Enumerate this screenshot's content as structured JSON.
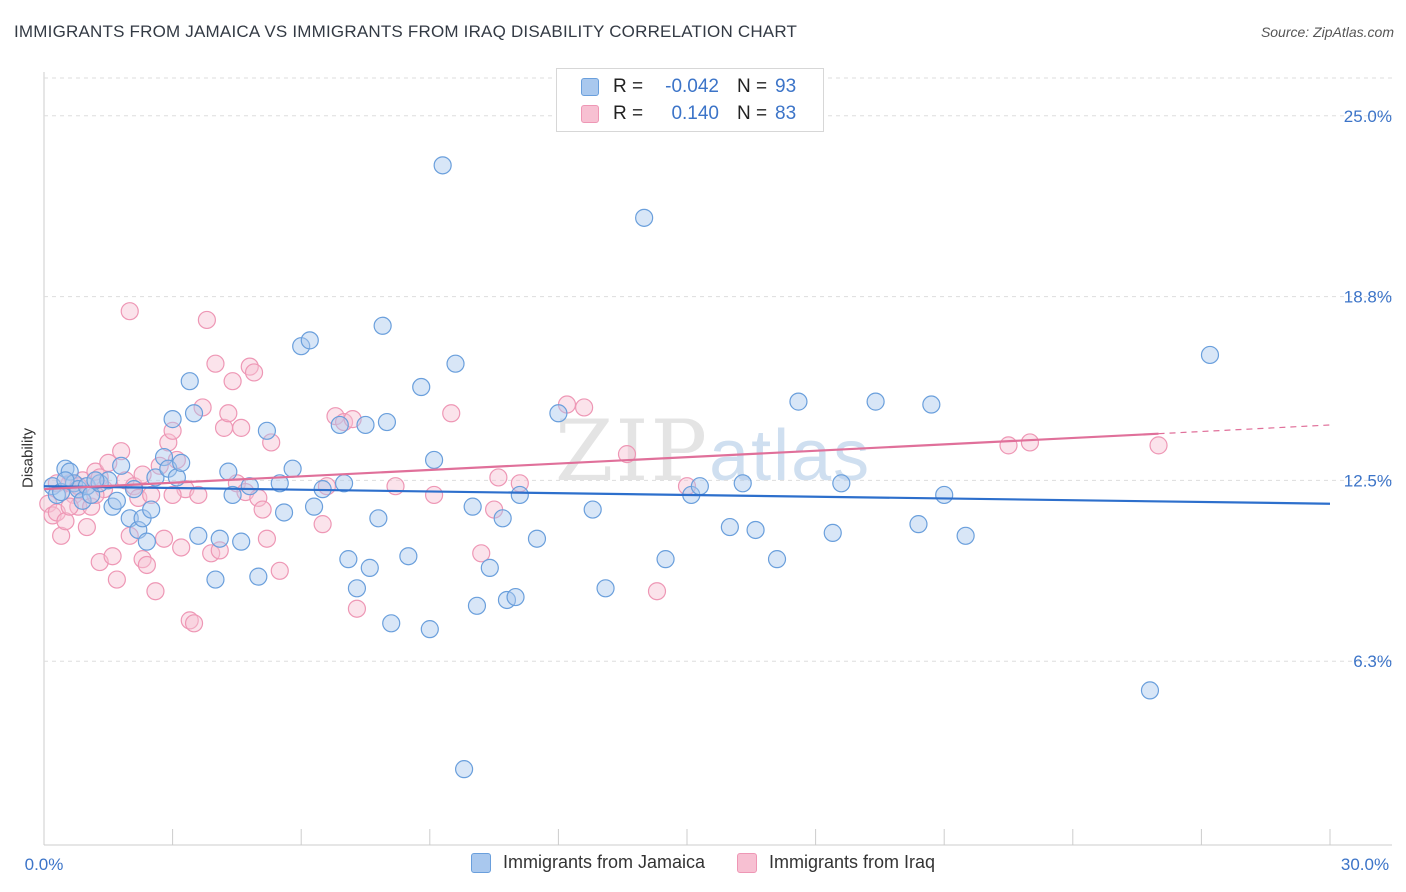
{
  "header": {
    "title": "IMMIGRANTS FROM JAMAICA VS IMMIGRANTS FROM IRAQ DISABILITY CORRELATION CHART",
    "source": "Source: ZipAtlas.com"
  },
  "watermark": {
    "part1": "ZIP",
    "part2": "atlas"
  },
  "legend": {
    "rows": [
      {
        "r_label": "R =",
        "r_value": "-0.042",
        "n_label": "N =",
        "n_value": "93",
        "color": "#7eaee8"
      },
      {
        "r_label": "R =",
        "r_value": "0.140",
        "n_label": "N =",
        "n_value": "83",
        "color": "#f4a6bf"
      }
    ]
  },
  "bottom_legend": {
    "series1": "Immigrants from Jamaica",
    "series2": "Immigrants from Iraq"
  },
  "colors": {
    "blue_fill": "#a9c8ee",
    "blue_stroke": "#6a9fdc",
    "blue_line": "#2d6fcc",
    "pink_fill": "#f7c0d2",
    "pink_stroke": "#ee97b5",
    "pink_line": "#e0709a",
    "tick_text": "#3c74c8",
    "grid": "#dddddd"
  },
  "chart_data": {
    "type": "scatter",
    "title": "IMMIGRANTS FROM JAMAICA VS IMMIGRANTS FROM IRAQ DISABILITY CORRELATION CHART",
    "xlabel": "",
    "ylabel": "Disability",
    "xlim": [
      0,
      30
    ],
    "ylim": [
      0,
      26.5
    ],
    "x_tick_labels": [
      "0.0%",
      "30.0%"
    ],
    "y_ticks": [
      6.3,
      12.5,
      18.8,
      25.0
    ],
    "y_tick_labels": [
      "6.3%",
      "12.5%",
      "18.8%",
      "25.0%"
    ],
    "grid": "horizontal dashed",
    "legend_position": "top-center",
    "series": [
      {
        "name": "Immigrants from Jamaica",
        "trend": {
          "x": [
            0,
            30
          ],
          "y": [
            12.3,
            11.7
          ],
          "dashed_from": null
        },
        "points": [
          [
            0.2,
            12.3
          ],
          [
            0.3,
            12.0
          ],
          [
            0.4,
            12.1
          ],
          [
            0.5,
            12.9
          ],
          [
            0.6,
            12.8
          ],
          [
            0.7,
            12.4
          ],
          [
            0.8,
            12.2
          ],
          [
            0.9,
            11.8
          ],
          [
            1.0,
            12.3
          ],
          [
            1.1,
            12.0
          ],
          [
            1.3,
            12.4
          ],
          [
            1.5,
            12.5
          ],
          [
            1.6,
            11.6
          ],
          [
            1.7,
            11.8
          ],
          [
            1.8,
            13.0
          ],
          [
            2.0,
            11.2
          ],
          [
            2.1,
            12.2
          ],
          [
            2.2,
            10.8
          ],
          [
            2.3,
            11.2
          ],
          [
            2.4,
            10.4
          ],
          [
            2.5,
            11.5
          ],
          [
            2.6,
            12.6
          ],
          [
            2.8,
            13.3
          ],
          [
            2.9,
            12.9
          ],
          [
            3.0,
            14.6
          ],
          [
            3.1,
            12.6
          ],
          [
            3.2,
            13.1
          ],
          [
            3.4,
            15.9
          ],
          [
            3.5,
            14.8
          ],
          [
            3.6,
            10.6
          ],
          [
            4.0,
            9.1
          ],
          [
            4.1,
            10.5
          ],
          [
            4.3,
            12.8
          ],
          [
            4.4,
            12.0
          ],
          [
            4.6,
            10.4
          ],
          [
            4.8,
            12.3
          ],
          [
            5.0,
            9.2
          ],
          [
            5.2,
            14.2
          ],
          [
            5.5,
            12.4
          ],
          [
            5.6,
            11.4
          ],
          [
            5.8,
            12.9
          ],
          [
            6.0,
            17.1
          ],
          [
            6.2,
            17.3
          ],
          [
            6.3,
            11.6
          ],
          [
            6.5,
            12.2
          ],
          [
            6.9,
            14.4
          ],
          [
            7.0,
            12.4
          ],
          [
            7.1,
            9.8
          ],
          [
            7.3,
            8.8
          ],
          [
            7.5,
            14.4
          ],
          [
            7.6,
            9.5
          ],
          [
            7.8,
            11.2
          ],
          [
            7.9,
            17.8
          ],
          [
            8.0,
            14.5
          ],
          [
            8.1,
            7.6
          ],
          [
            8.5,
            9.9
          ],
          [
            8.8,
            15.7
          ],
          [
            9.0,
            7.4
          ],
          [
            9.1,
            13.2
          ],
          [
            9.3,
            23.3
          ],
          [
            9.6,
            16.5
          ],
          [
            9.8,
            2.6
          ],
          [
            10.0,
            11.6
          ],
          [
            10.1,
            8.2
          ],
          [
            10.4,
            9.5
          ],
          [
            10.7,
            11.2
          ],
          [
            10.8,
            8.4
          ],
          [
            11.0,
            8.5
          ],
          [
            11.1,
            12.0
          ],
          [
            11.5,
            10.5
          ],
          [
            12.0,
            14.8
          ],
          [
            12.8,
            11.5
          ],
          [
            13.1,
            8.8
          ],
          [
            14.0,
            21.5
          ],
          [
            14.5,
            9.8
          ],
          [
            15.1,
            12.0
          ],
          [
            15.3,
            12.3
          ],
          [
            16.0,
            10.9
          ],
          [
            16.3,
            12.4
          ],
          [
            16.6,
            10.8
          ],
          [
            17.1,
            9.8
          ],
          [
            17.6,
            15.2
          ],
          [
            18.4,
            10.7
          ],
          [
            18.6,
            12.4
          ],
          [
            19.4,
            15.2
          ],
          [
            20.4,
            11.0
          ],
          [
            20.7,
            15.1
          ],
          [
            21.0,
            12.0
          ],
          [
            21.5,
            10.6
          ],
          [
            25.8,
            5.3
          ],
          [
            27.2,
            16.8
          ],
          [
            0.5,
            12.5
          ],
          [
            1.2,
            12.5
          ]
        ]
      },
      {
        "name": "Immigrants from Iraq",
        "trend": {
          "x": [
            0,
            26
          ],
          "y": [
            12.2,
            14.1
          ],
          "dashed_from": 26,
          "dashed_to": [
            30,
            14.4
          ]
        },
        "points": [
          [
            0.1,
            11.7
          ],
          [
            0.2,
            11.3
          ],
          [
            0.3,
            11.4
          ],
          [
            0.4,
            10.6
          ],
          [
            0.5,
            11.1
          ],
          [
            0.6,
            12.4
          ],
          [
            0.7,
            12.0
          ],
          [
            0.8,
            11.6
          ],
          [
            0.9,
            12.5
          ],
          [
            1.0,
            10.9
          ],
          [
            1.1,
            11.6
          ],
          [
            1.2,
            12.8
          ],
          [
            1.3,
            9.7
          ],
          [
            1.4,
            12.2
          ],
          [
            1.5,
            13.1
          ],
          [
            1.6,
            9.9
          ],
          [
            1.7,
            9.1
          ],
          [
            1.8,
            13.5
          ],
          [
            1.9,
            12.5
          ],
          [
            2.0,
            10.6
          ],
          [
            2.1,
            12.3
          ],
          [
            2.2,
            11.9
          ],
          [
            2.3,
            9.8
          ],
          [
            2.4,
            9.6
          ],
          [
            2.5,
            12.0
          ],
          [
            2.6,
            8.7
          ],
          [
            2.7,
            13.0
          ],
          [
            2.8,
            10.5
          ],
          [
            2.9,
            13.8
          ],
          [
            3.0,
            14.2
          ],
          [
            3.1,
            13.2
          ],
          [
            3.2,
            10.2
          ],
          [
            3.3,
            12.2
          ],
          [
            3.4,
            7.7
          ],
          [
            3.5,
            7.6
          ],
          [
            3.6,
            12.0
          ],
          [
            3.7,
            15.0
          ],
          [
            3.8,
            18.0
          ],
          [
            3.9,
            10.0
          ],
          [
            4.0,
            16.5
          ],
          [
            4.1,
            10.1
          ],
          [
            4.2,
            14.3
          ],
          [
            4.3,
            14.8
          ],
          [
            4.4,
            15.9
          ],
          [
            4.5,
            12.4
          ],
          [
            4.6,
            14.3
          ],
          [
            4.7,
            12.1
          ],
          [
            4.8,
            16.4
          ],
          [
            4.9,
            16.2
          ],
          [
            5.0,
            11.9
          ],
          [
            5.1,
            11.5
          ],
          [
            5.2,
            10.5
          ],
          [
            5.3,
            13.8
          ],
          [
            5.5,
            9.4
          ],
          [
            6.5,
            11.0
          ],
          [
            6.6,
            12.3
          ],
          [
            6.8,
            14.7
          ],
          [
            7.0,
            14.5
          ],
          [
            7.2,
            14.6
          ],
          [
            7.3,
            8.1
          ],
          [
            8.2,
            12.3
          ],
          [
            9.1,
            12.0
          ],
          [
            9.5,
            14.8
          ],
          [
            10.2,
            10.0
          ],
          [
            10.5,
            11.5
          ],
          [
            10.6,
            12.6
          ],
          [
            11.1,
            12.4
          ],
          [
            12.2,
            15.1
          ],
          [
            12.6,
            15.0
          ],
          [
            13.6,
            13.4
          ],
          [
            14.3,
            8.7
          ],
          [
            15.0,
            12.3
          ],
          [
            22.5,
            13.7
          ],
          [
            23.0,
            13.8
          ],
          [
            26.0,
            13.7
          ],
          [
            0.3,
            12.4
          ],
          [
            0.8,
            12.3
          ],
          [
            1.2,
            12.0
          ],
          [
            2.3,
            12.7
          ],
          [
            3.0,
            12.0
          ],
          [
            2.0,
            18.3
          ],
          [
            1.3,
            12.6
          ],
          [
            0.6,
            11.6
          ]
        ]
      }
    ]
  }
}
